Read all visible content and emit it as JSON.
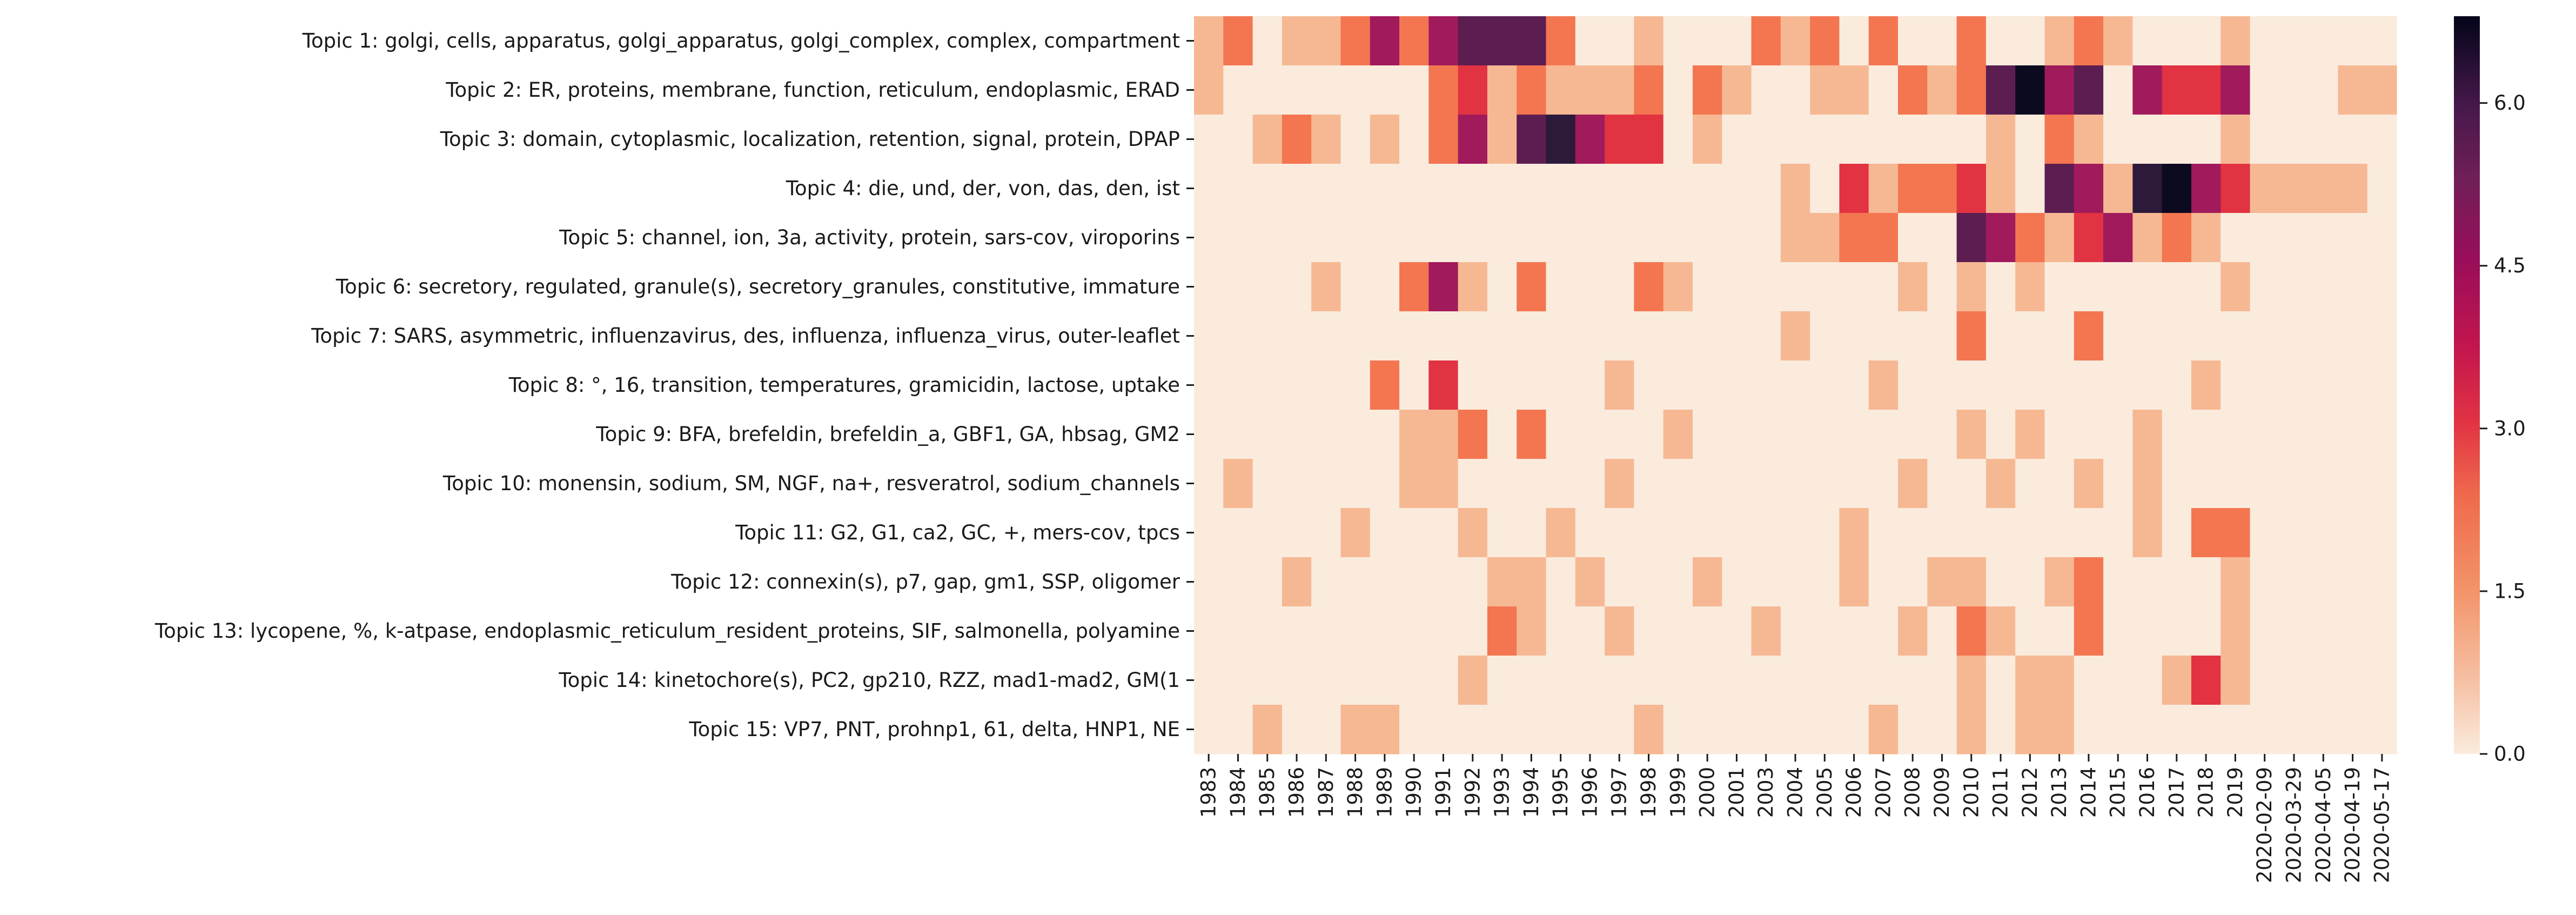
{
  "chart_data": {
    "type": "heatmap",
    "title": "",
    "xlabel": "",
    "ylabel": "",
    "colormap": "rocket_r",
    "color_range": [
      0,
      6.8
    ],
    "colorbar_ticks": [
      "0.0",
      "1.5",
      "3.0",
      "4.5",
      "6.0"
    ],
    "colorbar_tick_values": [
      0,
      1.5,
      3,
      4.5,
      6
    ],
    "x_categories": [
      "1983",
      "1984",
      "1985",
      "1986",
      "1987",
      "1988",
      "1989",
      "1990",
      "1991",
      "1992",
      "1993",
      "1994",
      "1995",
      "1996",
      "1997",
      "1998",
      "1999",
      "2000",
      "2001",
      "2003",
      "2004",
      "2005",
      "2006",
      "2007",
      "2008",
      "2009",
      "2010",
      "2011",
      "2012",
      "2013",
      "2014",
      "2015",
      "2016",
      "2017",
      "2018",
      "2019",
      "2020-02-09",
      "2020-03-29",
      "2020-04-05",
      "2020-04-19",
      "2020-05-17"
    ],
    "y_categories": [
      "Topic 1: golgi, cells, apparatus, golgi_apparatus, golgi_complex, complex, compartment",
      "Topic 2: ER, proteins, membrane, function, reticulum, endoplasmic, ERAD",
      "Topic 3: domain, cytoplasmic, localization, retention, signal, protein, DPAP",
      "Topic 4: die, und, der, von, das, den, ist",
      "Topic 5: channel, ion, 3a, activity, protein, sars-cov, viroporins",
      "Topic 6: secretory, regulated, granule(s), secretory_granules, constitutive, immature",
      "Topic 7: SARS, asymmetric, influenzavirus, des, influenza, influenza_virus, outer-leaflet",
      "Topic 8: °, 16, transition, temperatures, gramicidin, lactose, uptake",
      "Topic 9: BFA, brefeldin, brefeldin_a, GBF1, GA, hbsag, GM2",
      "Topic 10: monensin, sodium, SM, NGF, na+, resveratrol, sodium_channels",
      "Topic 11: G2, G1, ca2, GC, +, mers-cov, tpcs",
      "Topic 12: connexin(s), p7, gap, gm1, SSP, oligomer",
      "Topic 13: lycopene, %, k-atpase, endoplasmic_reticulum_resident_proteins, SIF, salmonella, polyamine",
      "Topic 14: kinetochore(s), PC2, gp210, RZZ, mad1-mad2, GM(1",
      "Topic 15: VP7, PNT, prohnp1, 61, delta, HNP1, NE"
    ],
    "values": [
      [
        1,
        2,
        0,
        1,
        1,
        2,
        4,
        2,
        4,
        5,
        5,
        5,
        2,
        0,
        0,
        1,
        0,
        0,
        0,
        2,
        1,
        2,
        0,
        2,
        0,
        0,
        2,
        0,
        0,
        1,
        2,
        1,
        0,
        0,
        0,
        1,
        0,
        0,
        0,
        0,
        0
      ],
      [
        1,
        0,
        0,
        0,
        0,
        0,
        0,
        0,
        2,
        3,
        1,
        2,
        1,
        1,
        1,
        2,
        0,
        2,
        1,
        0,
        0,
        1,
        1,
        0,
        2,
        1,
        2,
        5,
        7,
        4,
        5,
        0,
        4,
        3,
        3,
        4,
        0,
        0,
        0,
        1,
        1
      ],
      [
        0,
        0,
        1,
        2,
        1,
        0,
        1,
        0,
        2,
        4,
        1,
        5,
        6,
        4,
        3,
        3,
        0,
        1,
        0,
        0,
        0,
        0,
        0,
        0,
        0,
        0,
        0,
        1,
        0,
        2,
        1,
        0,
        0,
        0,
        0,
        1,
        0,
        0,
        0,
        0,
        0
      ],
      [
        0,
        0,
        0,
        0,
        0,
        0,
        0,
        0,
        0,
        0,
        0,
        0,
        0,
        0,
        0,
        0,
        0,
        0,
        0,
        0,
        1,
        0,
        3,
        1,
        2,
        2,
        3,
        1,
        0,
        5,
        4,
        1,
        6,
        7,
        4,
        3,
        1,
        1,
        1,
        1,
        0
      ],
      [
        0,
        0,
        0,
        0,
        0,
        0,
        0,
        0,
        0,
        0,
        0,
        0,
        0,
        0,
        0,
        0,
        0,
        0,
        0,
        0,
        1,
        1,
        2,
        2,
        0,
        0,
        5,
        4,
        2,
        1,
        3,
        4,
        1,
        2,
        1,
        0,
        0,
        0,
        0,
        0,
        0
      ],
      [
        0,
        0,
        0,
        0,
        1,
        0,
        0,
        2,
        4,
        1,
        0,
        2,
        0,
        0,
        0,
        2,
        1,
        0,
        0,
        0,
        0,
        0,
        0,
        0,
        1,
        0,
        1,
        0,
        1,
        0,
        0,
        0,
        0,
        0,
        0,
        1,
        0,
        0,
        0,
        0,
        0
      ],
      [
        0,
        0,
        0,
        0,
        0,
        0,
        0,
        0,
        0,
        0,
        0,
        0,
        0,
        0,
        0,
        0,
        0,
        0,
        0,
        0,
        1,
        0,
        0,
        0,
        0,
        0,
        2,
        0,
        0,
        0,
        2,
        0,
        0,
        0,
        0,
        0,
        0,
        0,
        0,
        0,
        0
      ],
      [
        0,
        0,
        0,
        0,
        0,
        0,
        2,
        0,
        3,
        0,
        0,
        0,
        0,
        0,
        1,
        0,
        0,
        0,
        0,
        0,
        0,
        0,
        0,
        1,
        0,
        0,
        0,
        0,
        0,
        0,
        0,
        0,
        0,
        0,
        1,
        0,
        0,
        0,
        0,
        0,
        0
      ],
      [
        0,
        0,
        0,
        0,
        0,
        0,
        0,
        1,
        1,
        2,
        0,
        2,
        0,
        0,
        0,
        0,
        1,
        0,
        0,
        0,
        0,
        0,
        0,
        0,
        0,
        0,
        1,
        0,
        1,
        0,
        0,
        0,
        1,
        0,
        0,
        0,
        0,
        0,
        0,
        0,
        0
      ],
      [
        0,
        1,
        0,
        0,
        0,
        0,
        0,
        1,
        1,
        0,
        0,
        0,
        0,
        0,
        1,
        0,
        0,
        0,
        0,
        0,
        0,
        0,
        0,
        0,
        1,
        0,
        0,
        1,
        0,
        0,
        1,
        0,
        1,
        0,
        0,
        0,
        0,
        0,
        0,
        0,
        0
      ],
      [
        0,
        0,
        0,
        0,
        0,
        1,
        0,
        0,
        0,
        1,
        0,
        0,
        1,
        0,
        0,
        0,
        0,
        0,
        0,
        0,
        0,
        0,
        1,
        0,
        0,
        0,
        0,
        0,
        0,
        0,
        0,
        0,
        1,
        0,
        2,
        2,
        0,
        0,
        0,
        0,
        0
      ],
      [
        0,
        0,
        0,
        1,
        0,
        0,
        0,
        0,
        0,
        0,
        1,
        1,
        0,
        1,
        0,
        0,
        0,
        1,
        0,
        0,
        0,
        0,
        1,
        0,
        0,
        1,
        1,
        0,
        0,
        1,
        2,
        0,
        0,
        0,
        0,
        1,
        0,
        0,
        0,
        0,
        0
      ],
      [
        0,
        0,
        0,
        0,
        0,
        0,
        0,
        0,
        0,
        0,
        2,
        1,
        0,
        0,
        1,
        0,
        0,
        0,
        0,
        1,
        0,
        0,
        0,
        0,
        1,
        0,
        2,
        1,
        0,
        0,
        2,
        0,
        0,
        0,
        0,
        1,
        0,
        0,
        0,
        0,
        0
      ],
      [
        0,
        0,
        0,
        0,
        0,
        0,
        0,
        0,
        0,
        1,
        0,
        0,
        0,
        0,
        0,
        0,
        0,
        0,
        0,
        0,
        0,
        0,
        0,
        0,
        0,
        0,
        1,
        0,
        1,
        1,
        0,
        0,
        0,
        1,
        3,
        1,
        0,
        0,
        0,
        0,
        0
      ],
      [
        0,
        0,
        1,
        0,
        0,
        1,
        1,
        0,
        0,
        0,
        0,
        0,
        0,
        0,
        0,
        1,
        0,
        0,
        0,
        0,
        0,
        0,
        0,
        1,
        0,
        0,
        1,
        0,
        1,
        1,
        0,
        0,
        0,
        0,
        0,
        0,
        0,
        0,
        0,
        0,
        0
      ]
    ]
  }
}
